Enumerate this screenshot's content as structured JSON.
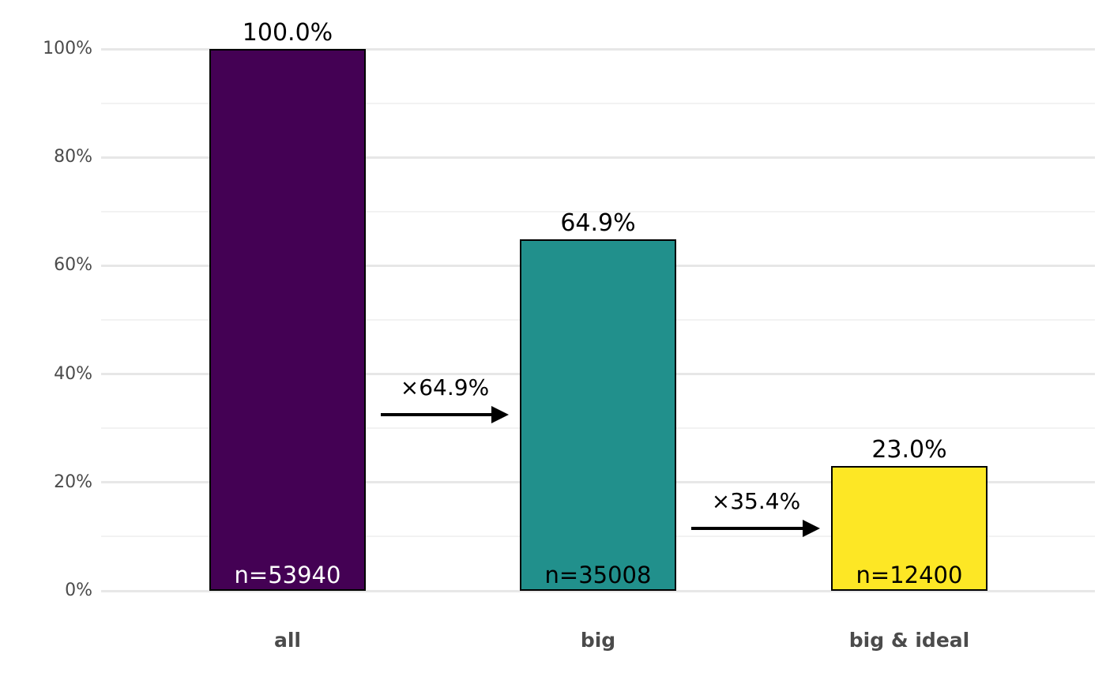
{
  "chart_data": {
    "type": "bar",
    "title": "",
    "xlabel": "",
    "ylabel": "",
    "legend": "none",
    "categories": [
      "all",
      "big",
      "big & ideal"
    ],
    "values": [
      100.0,
      64.9,
      23.0
    ],
    "counts": [
      53940,
      35008,
      12400
    ],
    "bars": [
      {
        "category": "all",
        "percent": 100.0,
        "percent_label": "100.0%",
        "count_label": "n=53940",
        "fill_color": "#440154",
        "count_label_color": "#ffffff"
      },
      {
        "category": "big",
        "percent": 64.9,
        "percent_label": "64.9%",
        "count_label": "n=35008",
        "fill_color": "#21908C",
        "count_label_color": "#000000"
      },
      {
        "category": "big & ideal",
        "percent": 23.0,
        "percent_label": "23.0%",
        "count_label": "n=12400",
        "fill_color": "#FDE725",
        "count_label_color": "#000000"
      }
    ],
    "transition_arrows": [
      {
        "label": "×64.9%",
        "from": "all",
        "to": "big"
      },
      {
        "label": "×35.4%",
        "from": "big",
        "to": "big & ideal"
      }
    ],
    "y_axis": {
      "tick_labels": [
        "0%",
        "20%",
        "40%",
        "60%",
        "80%",
        "100%"
      ],
      "tick_values": [
        0,
        20,
        40,
        60,
        80,
        100
      ],
      "minor_tick_values": [
        10,
        30,
        50,
        70,
        90
      ],
      "ylim": [
        0,
        100
      ]
    },
    "grid": {
      "horizontal_major": true,
      "horizontal_minor": true,
      "vertical": false
    },
    "colors": {
      "background": "#ffffff",
      "bar_border": "#000000",
      "grid_major": "#e7e7e7",
      "grid_minor": "#f2f2f2",
      "axis_text": "#4b4b4b",
      "annotation_text": "#000000",
      "arrow": "#000000"
    }
  }
}
